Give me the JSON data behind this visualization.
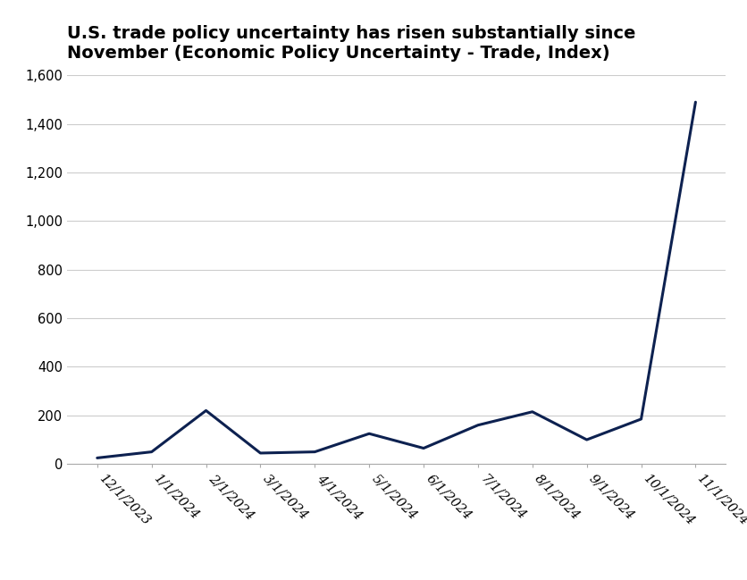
{
  "title": "U.S. trade policy uncertainty has risen substantially since\nNovember (Economic Policy Uncertainty - Trade, Index)",
  "dates": [
    "12/1/2023",
    "1/1/2024",
    "2/1/2024",
    "3/1/2024",
    "4/1/2024",
    "5/1/2024",
    "6/1/2024",
    "7/1/2024",
    "8/1/2024",
    "9/1/2024",
    "10/1/2024",
    "11/1/2024"
  ],
  "values": [
    25,
    50,
    220,
    45,
    50,
    125,
    65,
    160,
    215,
    100,
    185,
    1490
  ],
  "line_color": "#0d2150",
  "line_width": 2.2,
  "background_color": "#ffffff",
  "ylim": [
    0,
    1600
  ],
  "yticks": [
    0,
    200,
    400,
    600,
    800,
    1000,
    1200,
    1400,
    1600
  ],
  "title_fontsize": 14,
  "tick_fontsize": 10.5,
  "grid_color": "#cccccc",
  "grid_linewidth": 0.8
}
